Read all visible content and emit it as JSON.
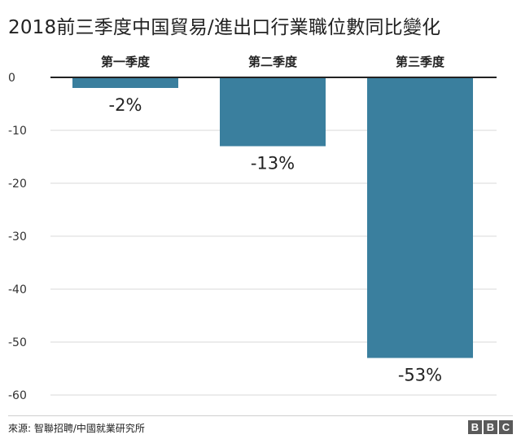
{
  "title": "2018前三季度中国貿易/進出口行業職位數同比變化",
  "source": "來源: 智聯招聘/中國就業研究所",
  "logo": [
    "B",
    "B",
    "C"
  ],
  "colors": {
    "bar": "#3a7f9e",
    "grid": "#d9d9d9",
    "zero_line": "#222222"
  },
  "chart_data": {
    "type": "bar",
    "categories": [
      "第一季度",
      "第二季度",
      "第三季度"
    ],
    "values": [
      -2,
      -13,
      -53
    ],
    "data_labels": [
      "-2%",
      "-13%",
      "-53%"
    ],
    "y_ticks": [
      0,
      -10,
      -20,
      -30,
      -40,
      -50,
      -60
    ],
    "ylim": [
      -60,
      0
    ],
    "grid": true,
    "title": "2018前三季度中国貿易/進出口行業職位數同比變化",
    "xlabel": "",
    "ylabel": ""
  }
}
